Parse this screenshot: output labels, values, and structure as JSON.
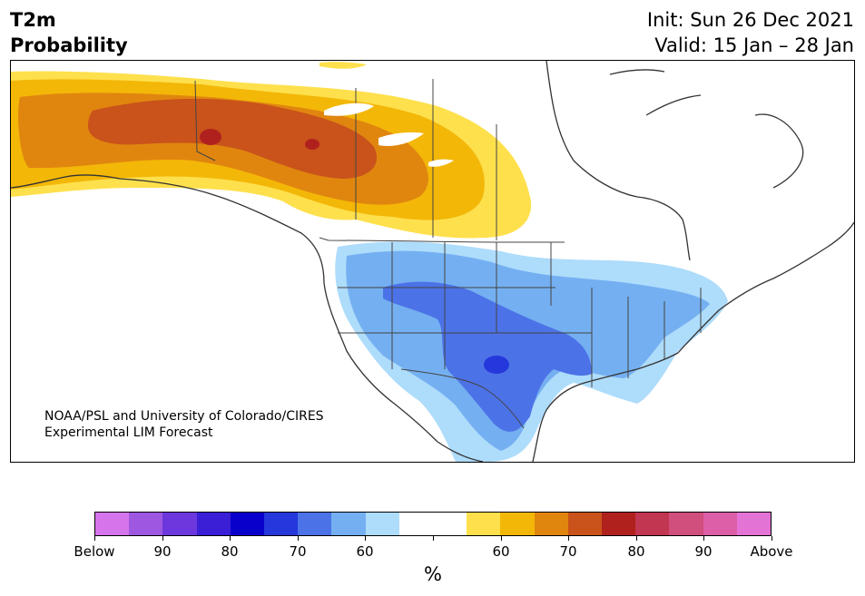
{
  "header": {
    "title_line1": "T2m",
    "title_line2": "Probability",
    "init": "Init: Sun 26 Dec 2021",
    "valid": "Valid: 15 Jan – 28 Jan"
  },
  "credit": {
    "line1": "NOAA/PSL and University of Colorado/CIRES",
    "line2": "Experimental LIM Forecast"
  },
  "colorbar": {
    "colors": [
      "#d675eb",
      "#9e57e0",
      "#6c37dd",
      "#3a1fd6",
      "#0a00cc",
      "#2438db",
      "#4c72e7",
      "#74b0f1",
      "#aedcfb",
      "#ffffff",
      "#ffffff",
      "#fee04d",
      "#f3b708",
      "#e0860f",
      "#c9531a",
      "#b0211e",
      "#c13650",
      "#d04f7c",
      "#dc5fa8",
      "#e473d6"
    ],
    "labels": [
      "Below",
      "90",
      "80",
      "70",
      "60",
      "",
      "60",
      "70",
      "80",
      "90",
      "Above"
    ],
    "unit": "%"
  },
  "map": {
    "ocean_color": "#ffffff",
    "coast_color": "#333333",
    "warm_region": "Alaska and western/central Canada",
    "cold_region": "Western, central and southern United States and northern Mexico"
  }
}
